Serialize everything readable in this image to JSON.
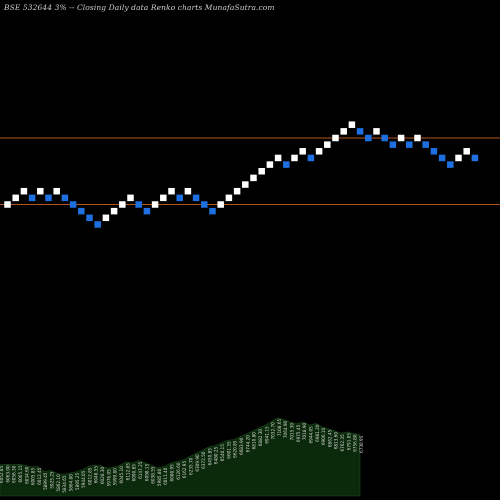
{
  "chart_data": {
    "type": "renko",
    "title": "BSE 532644  3% -- Closing Daily data  Renko  charts MunafaSutra.com",
    "brick_colors": {
      "up": "#ffffff",
      "down": "#1e6fe0"
    },
    "reference_line_color": "#b5561f",
    "reference_levels": [
      7000,
      6000
    ],
    "bricks": [
      {
        "dir": "up",
        "value": 6000
      },
      {
        "dir": "up",
        "value": 6100
      },
      {
        "dir": "up",
        "value": 6200
      },
      {
        "dir": "down",
        "value": 6100
      },
      {
        "dir": "up",
        "value": 6200
      },
      {
        "dir": "down",
        "value": 6100
      },
      {
        "dir": "up",
        "value": 6200
      },
      {
        "dir": "down",
        "value": 6100
      },
      {
        "dir": "down",
        "value": 6000
      },
      {
        "dir": "down",
        "value": 5900
      },
      {
        "dir": "down",
        "value": 5800
      },
      {
        "dir": "down",
        "value": 5700
      },
      {
        "dir": "up",
        "value": 5800
      },
      {
        "dir": "up",
        "value": 5900
      },
      {
        "dir": "up",
        "value": 6000
      },
      {
        "dir": "up",
        "value": 6100
      },
      {
        "dir": "down",
        "value": 6000
      },
      {
        "dir": "down",
        "value": 5900
      },
      {
        "dir": "up",
        "value": 6000
      },
      {
        "dir": "up",
        "value": 6100
      },
      {
        "dir": "up",
        "value": 6200
      },
      {
        "dir": "down",
        "value": 6100
      },
      {
        "dir": "up",
        "value": 6200
      },
      {
        "dir": "down",
        "value": 6100
      },
      {
        "dir": "down",
        "value": 6000
      },
      {
        "dir": "down",
        "value": 5900
      },
      {
        "dir": "up",
        "value": 6000
      },
      {
        "dir": "up",
        "value": 6100
      },
      {
        "dir": "up",
        "value": 6200
      },
      {
        "dir": "up",
        "value": 6300
      },
      {
        "dir": "up",
        "value": 6400
      },
      {
        "dir": "up",
        "value": 6500
      },
      {
        "dir": "up",
        "value": 6600
      },
      {
        "dir": "up",
        "value": 6700
      },
      {
        "dir": "down",
        "value": 6600
      },
      {
        "dir": "up",
        "value": 6700
      },
      {
        "dir": "up",
        "value": 6800
      },
      {
        "dir": "down",
        "value": 6700
      },
      {
        "dir": "up",
        "value": 6800
      },
      {
        "dir": "up",
        "value": 6900
      },
      {
        "dir": "up",
        "value": 7000
      },
      {
        "dir": "up",
        "value": 7100
      },
      {
        "dir": "up",
        "value": 7200
      },
      {
        "dir": "down",
        "value": 7100
      },
      {
        "dir": "down",
        "value": 7000
      },
      {
        "dir": "up",
        "value": 7100
      },
      {
        "dir": "down",
        "value": 7000
      },
      {
        "dir": "down",
        "value": 6900
      },
      {
        "dir": "up",
        "value": 7000
      },
      {
        "dir": "down",
        "value": 6900
      },
      {
        "dir": "up",
        "value": 7000
      },
      {
        "dir": "down",
        "value": 6900
      },
      {
        "dir": "down",
        "value": 6800
      },
      {
        "dir": "down",
        "value": 6700
      },
      {
        "dir": "down",
        "value": 6600
      },
      {
        "dir": "up",
        "value": 6700
      },
      {
        "dir": "up",
        "value": 6800
      },
      {
        "dir": "down",
        "value": 6700
      }
    ],
    "bottom_labels": [
      "6052.85",
      "6063.00",
      "6056.30",
      "6065.15",
      "6034.60",
      "6005.85",
      "6012.45",
      "5899.45",
      "5925.25",
      "5862.10",
      "5834.65",
      "5864.80",
      "5895.25",
      "5944.05",
      "6012.85",
      "6048.55",
      "6028.30",
      "5976.05",
      "5999.80",
      "6045.10",
      "6112.85",
      "6090.85",
      "6147.25",
      "6098.15",
      "6038.55",
      "5985.80",
      "6011.40",
      "6088.95",
      "6126.60",
      "6162.95",
      "6235.70",
      "6309.90",
      "6372.50",
      "6450.85",
      "6480.25",
      "6540.15",
      "6601.35",
      "6620.85",
      "6683.90",
      "6744.20",
      "6810.80",
      "6882.30",
      "6941.15",
      "7032.70",
      "7108.65",
      "7064.90",
      "7015.30",
      "6975.45",
      "7018.90",
      "6944.05",
      "6981.20",
      "6906.10",
      "6862.45",
      "6813.60",
      "6762.35",
      "6791.05",
      "6756.80",
      "6730.95"
    ]
  }
}
